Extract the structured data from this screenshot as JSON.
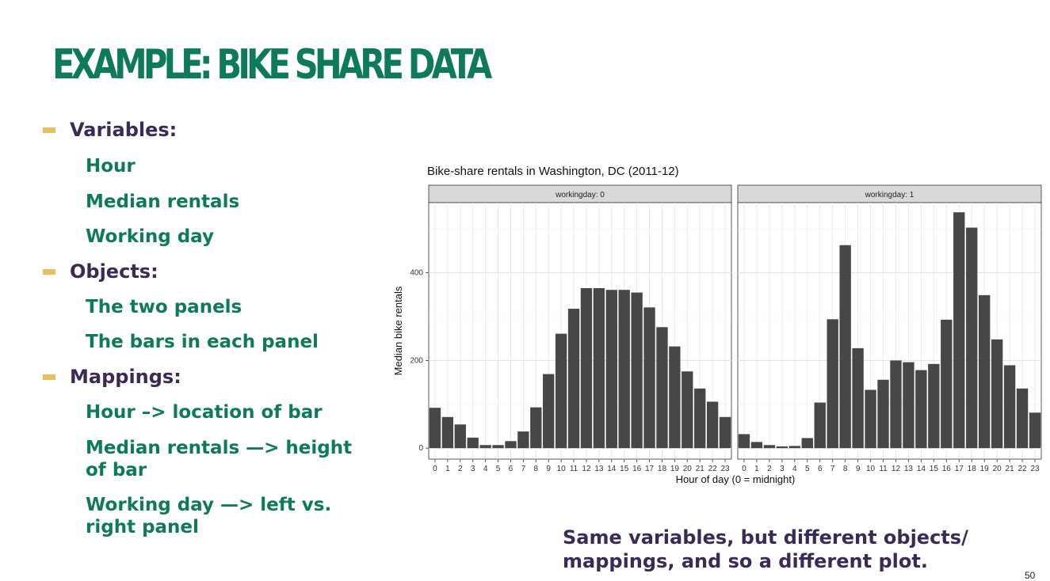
{
  "slide": {
    "title": "EXAMPLE: BIKE SHARE DATA",
    "page_number": "50",
    "caption_line1": "Same variables, but different objects/",
    "caption_line2": "mappings, and so a different plot."
  },
  "bullets": [
    {
      "heading": "Variables:",
      "items": [
        "Hour",
        "Median rentals",
        "Working day"
      ]
    },
    {
      "heading": "Objects:",
      "items": [
        "The two panels",
        "The bars in each panel"
      ]
    },
    {
      "heading": "Mappings:",
      "items": [
        "Hour –> location of bar",
        "Median rentals —> height of bar",
        "Working day —> left vs. right panel"
      ]
    }
  ],
  "colors": {
    "title": "#0e7a5c",
    "heading": "#3b2a55",
    "bullet_dash": "#e8bf60",
    "bar": "#474747",
    "panel_bg": "#ebebeb"
  },
  "chart_data": {
    "type": "bar",
    "title": "Bike-share rentals in Washington, DC (2011-12)",
    "xlabel": "Hour of day (0 = midnight)",
    "ylabel": "Median bike rentals",
    "categories": [
      "0",
      "1",
      "2",
      "3",
      "4",
      "5",
      "6",
      "7",
      "8",
      "9",
      "10",
      "11",
      "12",
      "13",
      "14",
      "15",
      "16",
      "17",
      "18",
      "19",
      "20",
      "21",
      "22",
      "23"
    ],
    "yticks": [
      0,
      200,
      400
    ],
    "ylim": [
      -25,
      560
    ],
    "grid": true,
    "facets": [
      {
        "name": "workingday: 0",
        "values": [
          92,
          71,
          54,
          24,
          7,
          7,
          16,
          38,
          93,
          169,
          261,
          318,
          365,
          365,
          361,
          361,
          355,
          321,
          276,
          232,
          175,
          136,
          106,
          71
        ]
      },
      {
        "name": "workingday: 1",
        "values": [
          32,
          14,
          7,
          4,
          5,
          23,
          104,
          294,
          463,
          228,
          133,
          156,
          200,
          196,
          178,
          192,
          293,
          538,
          503,
          349,
          248,
          189,
          136,
          81
        ]
      }
    ]
  }
}
